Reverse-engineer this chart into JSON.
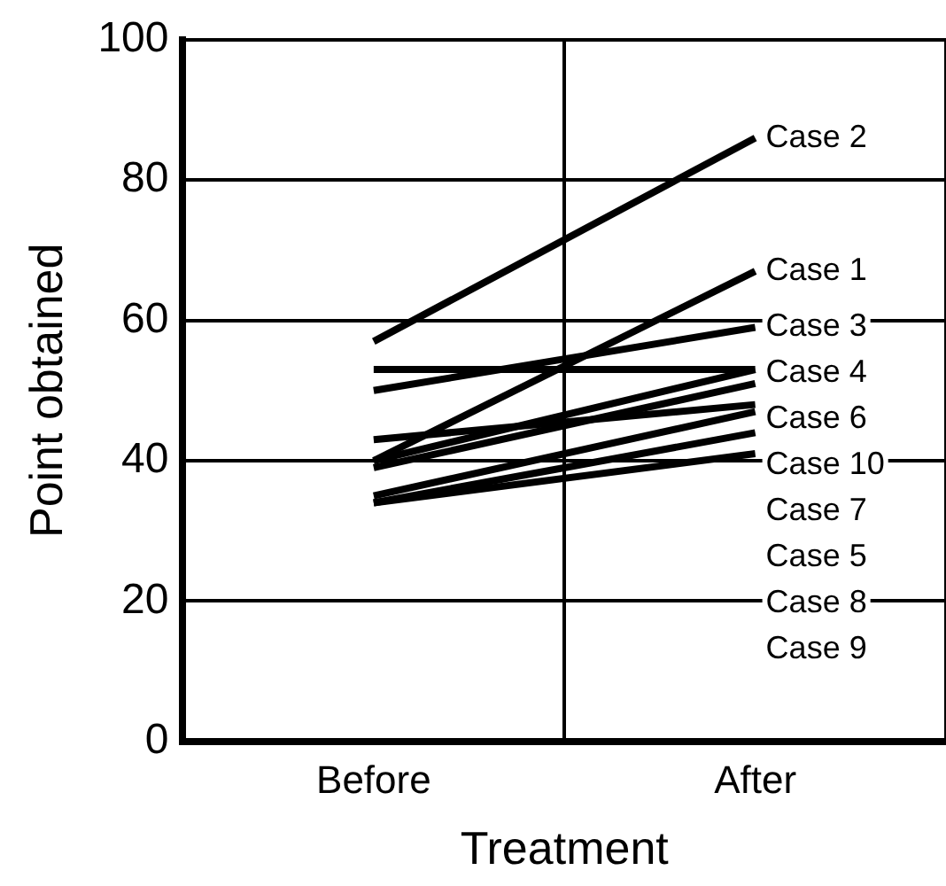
{
  "chart_data": {
    "type": "line",
    "xlabel": "Treatment",
    "ylabel": "Point obtained",
    "categories": [
      "Before",
      "After"
    ],
    "series": [
      {
        "name": "Case 2",
        "color": "#000000",
        "values": [
          57,
          86
        ]
      },
      {
        "name": "Case 1",
        "color": "#000000",
        "values": [
          40,
          67
        ]
      },
      {
        "name": "Case 3",
        "color": "#000000",
        "values": [
          50,
          59
        ]
      },
      {
        "name": "Case 4",
        "color": "#000000",
        "values": [
          53,
          53
        ]
      },
      {
        "name": "Case 6",
        "color": "#000000",
        "values": [
          40,
          53
        ]
      },
      {
        "name": "Case 10",
        "color": "#000000",
        "values": [
          39,
          51
        ]
      },
      {
        "name": "Case 7",
        "color": "#000000",
        "values": [
          43,
          48
        ]
      },
      {
        "name": "Case 5",
        "color": "#000000",
        "values": [
          35,
          47
        ]
      },
      {
        "name": "Case 8",
        "color": "#000000",
        "values": [
          34,
          44
        ]
      },
      {
        "name": "Case 9",
        "color": "#000000",
        "values": [
          34,
          41
        ]
      }
    ],
    "ylim": [
      0,
      100
    ],
    "yticks": [
      0,
      20,
      40,
      60,
      80,
      100
    ],
    "grid": true,
    "legend": false,
    "marker": "none",
    "line_style": "solid"
  }
}
